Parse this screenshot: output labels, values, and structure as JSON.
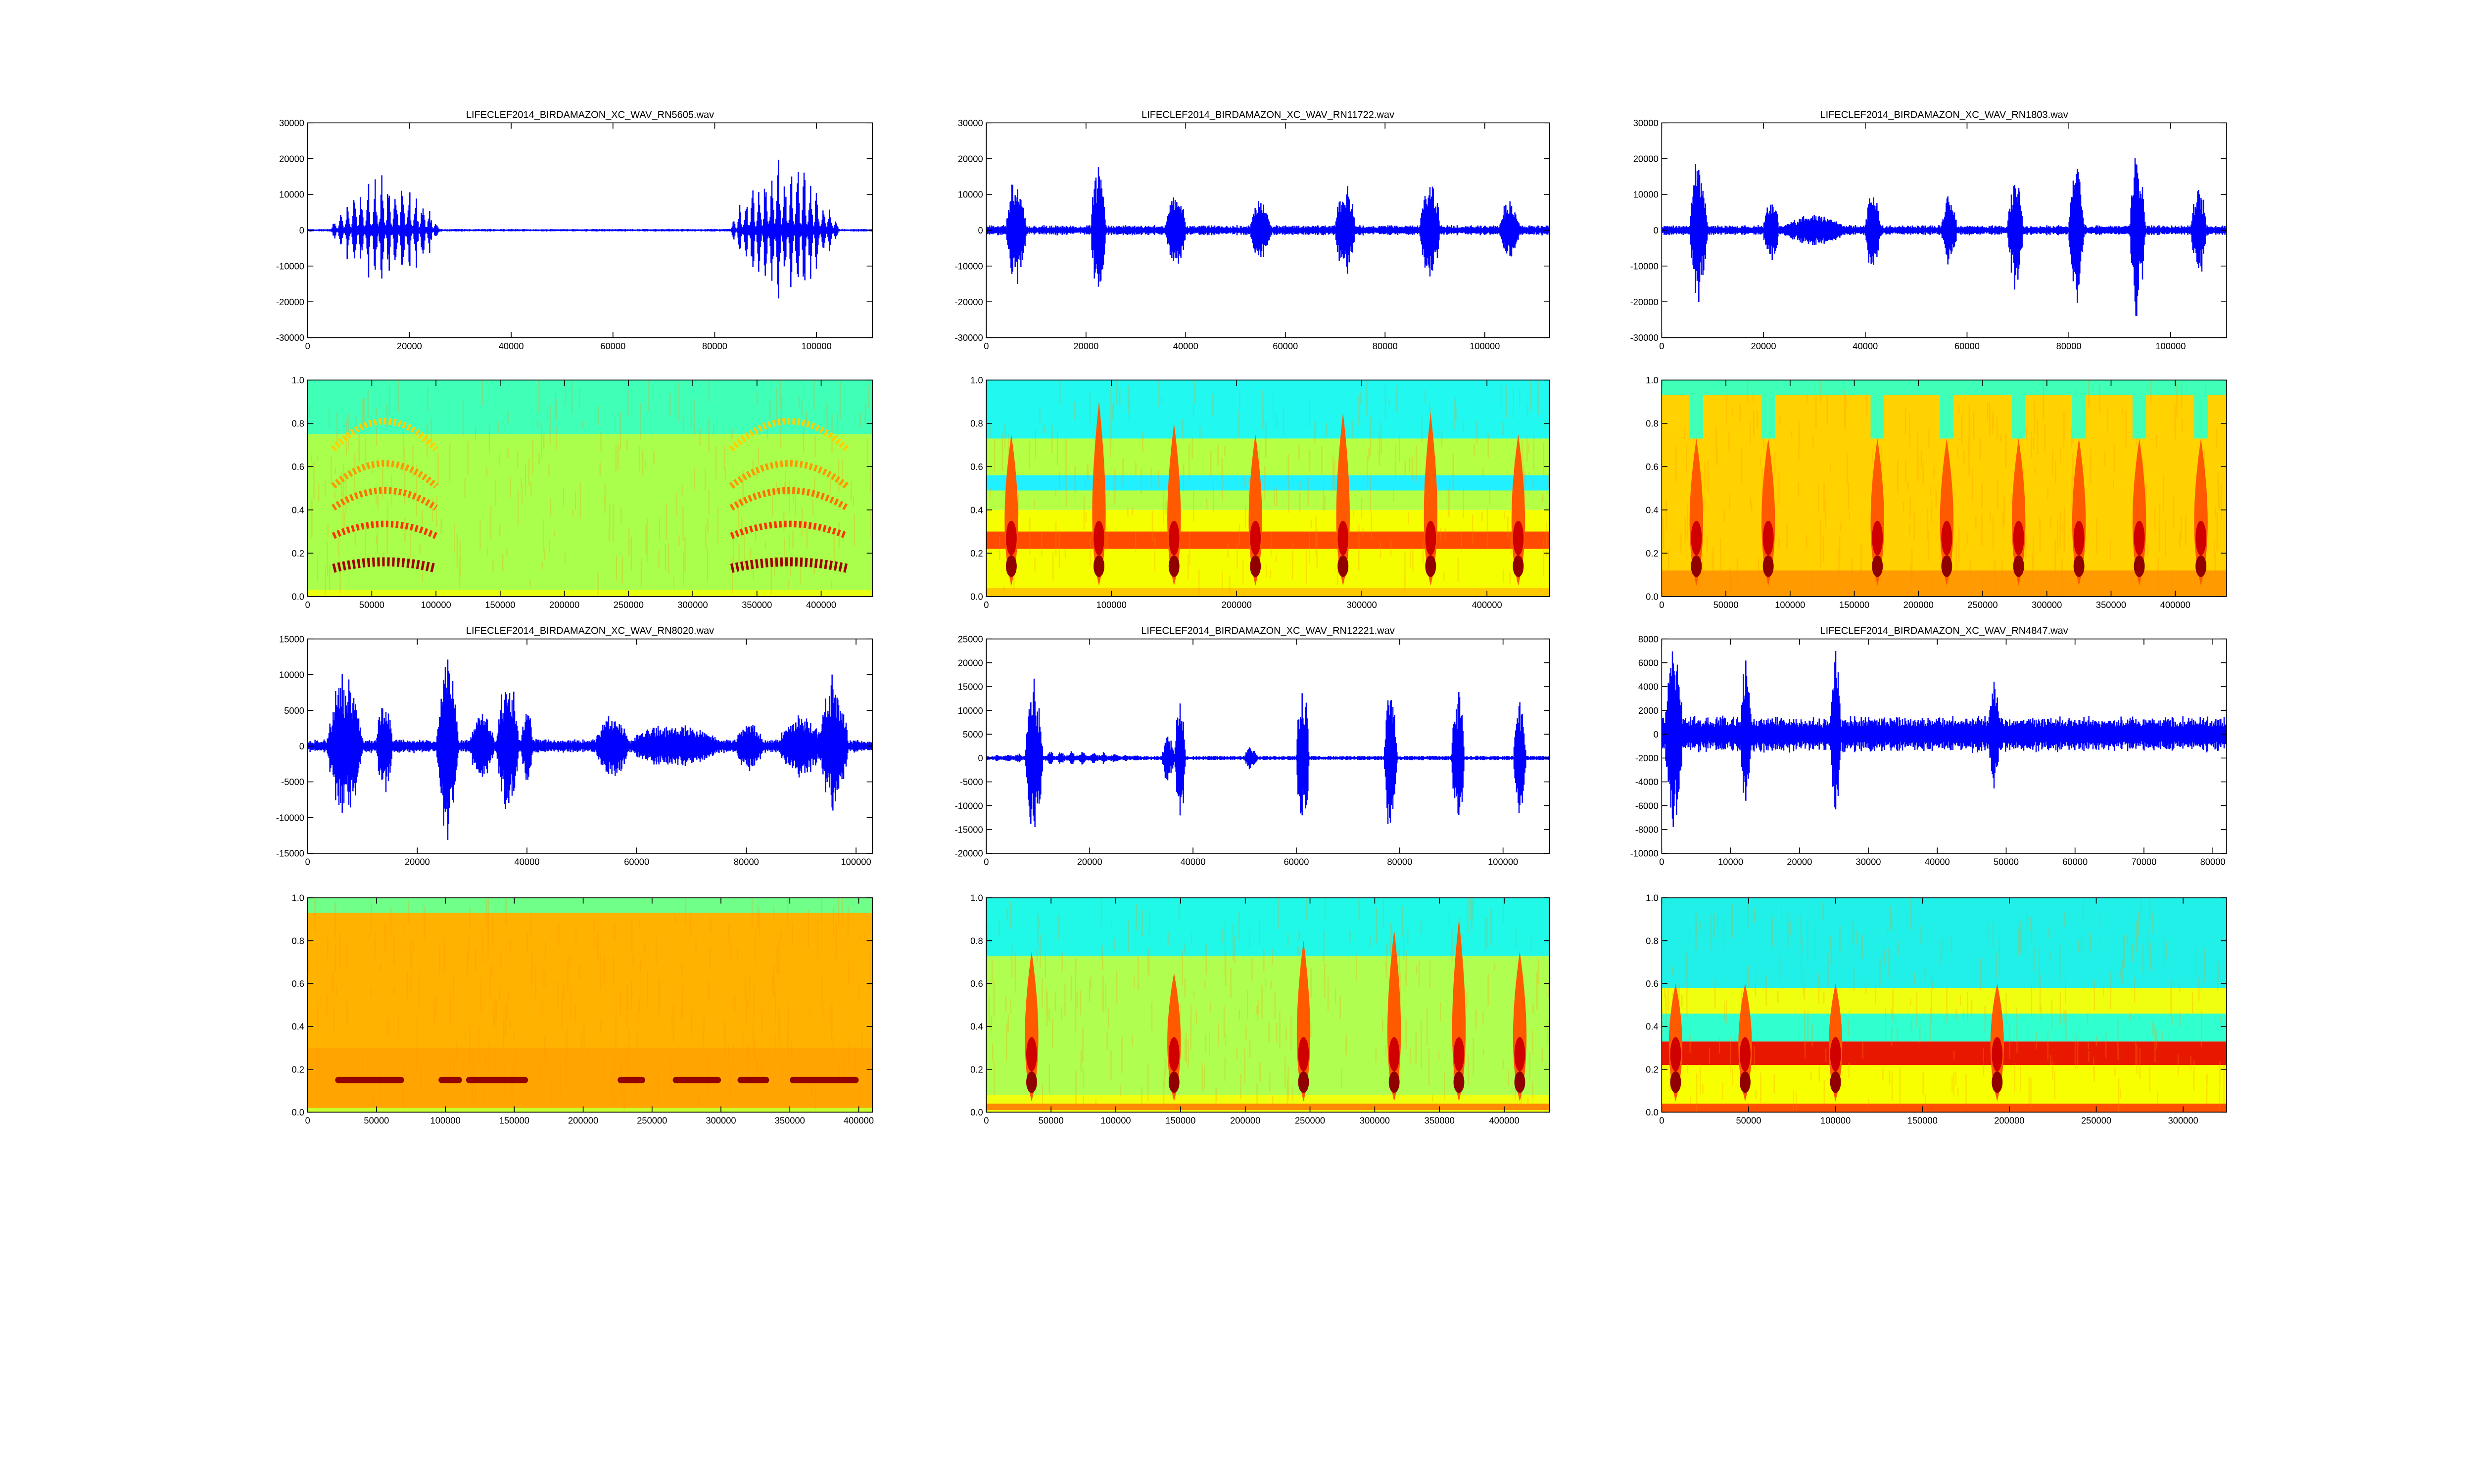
{
  "chart_data": [
    {
      "type": "line",
      "title": "LIFECLEF2014_BIRDAMAZON_XC_WAV_RN5605.wav",
      "xlim": [
        0,
        111000
      ],
      "ylim": [
        -30000,
        30000
      ],
      "xticks": [
        "0",
        "20000",
        "40000",
        "60000",
        "80000",
        "100000"
      ],
      "yticks": [
        "-30000",
        "-20000",
        "-10000",
        "0",
        "10000",
        "20000",
        "30000"
      ],
      "noise": 400,
      "color": "#0000ff",
      "bursts": [
        {
          "start": 4500,
          "end": 26000,
          "amp": 17000,
          "pulses": 16
        },
        {
          "start": 83000,
          "end": 104500,
          "amp": 22000,
          "pulses": 17
        }
      ]
    },
    {
      "type": "line",
      "title": "LIFECLEF2014_BIRDAMAZON_XC_WAV_RN11722.wav",
      "xlim": [
        0,
        113000
      ],
      "ylim": [
        -30000,
        30000
      ],
      "xticks": [
        "0",
        "20000",
        "40000",
        "60000",
        "80000",
        "100000"
      ],
      "yticks": [
        "-30000",
        "-20000",
        "-10000",
        "0",
        "10000",
        "20000",
        "30000"
      ],
      "noise": 1500,
      "color": "#0000ff",
      "bursts": [
        {
          "start": 4000,
          "end": 8000,
          "amp": 15000,
          "pulses": 0
        },
        {
          "start": 21000,
          "end": 24000,
          "amp": 20000,
          "pulses": 0
        },
        {
          "start": 36000,
          "end": 40000,
          "amp": 12000,
          "pulses": 0
        },
        {
          "start": 53000,
          "end": 57000,
          "amp": 9000,
          "pulses": 0
        },
        {
          "start": 70000,
          "end": 74000,
          "amp": 13000,
          "pulses": 0
        },
        {
          "start": 87000,
          "end": 91000,
          "amp": 15000,
          "pulses": 0
        },
        {
          "start": 103000,
          "end": 107000,
          "amp": 8000,
          "pulses": 0
        }
      ]
    },
    {
      "type": "line",
      "title": "LIFECLEF2014_BIRDAMAZON_XC_WAV_RN1803.wav",
      "xlim": [
        0,
        111000
      ],
      "ylim": [
        -30000,
        30000
      ],
      "xticks": [
        "0",
        "20000",
        "40000",
        "60000",
        "80000",
        "100000"
      ],
      "yticks": [
        "-30000",
        "-20000",
        "-10000",
        "0",
        "10000",
        "20000",
        "30000"
      ],
      "noise": 1500,
      "color": "#0000ff",
      "bursts": [
        {
          "start": 5500,
          "end": 9000,
          "amp": 21000,
          "pulses": 0
        },
        {
          "start": 20000,
          "end": 23000,
          "amp": 10000,
          "pulses": 0
        },
        {
          "start": 24000,
          "end": 36000,
          "amp": 3500,
          "pulses": 0
        },
        {
          "start": 40000,
          "end": 43000,
          "amp": 13000,
          "pulses": 0
        },
        {
          "start": 55000,
          "end": 58000,
          "amp": 10000,
          "pulses": 0
        },
        {
          "start": 68000,
          "end": 71000,
          "amp": 17000,
          "pulses": 0
        },
        {
          "start": 80000,
          "end": 83000,
          "amp": 20000,
          "pulses": 0
        },
        {
          "start": 92000,
          "end": 95000,
          "amp": 25000,
          "pulses": 0
        },
        {
          "start": 104000,
          "end": 107000,
          "amp": 14000,
          "pulses": 0
        }
      ]
    },
    {
      "type": "heatmap",
      "xlim": [
        0,
        440000
      ],
      "ylim": [
        0,
        1
      ],
      "xticks": [
        "0",
        "50000",
        "100000",
        "150000",
        "200000",
        "250000",
        "300000",
        "350000",
        "400000"
      ],
      "yticks": [
        "0.0",
        "0.2",
        "0.4",
        "0.6",
        "0.8",
        "1.0"
      ],
      "bands": [
        {
          "f0": 0,
          "f1": 0.75,
          "color": "#aaff4d"
        },
        {
          "f0": 0.75,
          "f1": 1,
          "color": "#40ffb7"
        },
        {
          "f0": 0,
          "f1": 0.03,
          "color": "#e8ff10"
        }
      ],
      "arcs": [
        {
          "t0": 20000,
          "t1": 100000
        },
        {
          "t0": 330000,
          "t1": 420000
        }
      ],
      "harmonics": [
        {
          "f": 0.15,
          "color": "#a00000"
        },
        {
          "f": 0.3,
          "color": "#ff3000"
        },
        {
          "f": 0.43,
          "color": "#ff7000"
        },
        {
          "f": 0.53,
          "color": "#ff9800"
        },
        {
          "f": 0.7,
          "color": "#ffd000"
        }
      ],
      "calls": [],
      "notches": []
    },
    {
      "type": "heatmap",
      "xlim": [
        0,
        450000
      ],
      "ylim": [
        0,
        1
      ],
      "xticks": [
        "0",
        "100000",
        "200000",
        "300000",
        "400000"
      ],
      "yticks": [
        "0.0",
        "0.2",
        "0.4",
        "0.6",
        "0.8",
        "1.0"
      ],
      "bands": [
        {
          "f0": 0,
          "f1": 0.4,
          "color": "#f5ff00"
        },
        {
          "f0": 0.4,
          "f1": 0.73,
          "color": "#b5ff45"
        },
        {
          "f0": 0.49,
          "f1": 0.56,
          "color": "#20f0ff"
        },
        {
          "f0": 0.73,
          "f1": 1,
          "color": "#20f8f0"
        },
        {
          "f0": 0.22,
          "f1": 0.3,
          "color": "#ff4a00"
        },
        {
          "f0": 0,
          "f1": 0.04,
          "color": "#ffc800"
        }
      ],
      "arcs": [],
      "harmonics": [],
      "calls": [
        {
          "t": 20000,
          "fmax": 0.75
        },
        {
          "t": 90000,
          "fmax": 0.9
        },
        {
          "t": 150000,
          "fmax": 0.8
        },
        {
          "t": 215000,
          "fmax": 0.75
        },
        {
          "t": 285000,
          "fmax": 0.85
        },
        {
          "t": 355000,
          "fmax": 0.85
        },
        {
          "t": 425000,
          "fmax": 0.75
        }
      ],
      "notches": []
    },
    {
      "type": "heatmap",
      "xlim": [
        0,
        440000
      ],
      "ylim": [
        0,
        1
      ],
      "xticks": [
        "0",
        "50000",
        "100000",
        "150000",
        "200000",
        "250000",
        "300000",
        "350000",
        "400000"
      ],
      "yticks": [
        "0.0",
        "0.2",
        "0.4",
        "0.6",
        "0.8",
        "1.0"
      ],
      "bands": [
        {
          "f0": 0,
          "f1": 0.93,
          "color": "#ffd200"
        },
        {
          "f0": 0,
          "f1": 0.12,
          "color": "#ff9a00"
        },
        {
          "f0": 0.93,
          "f1": 1,
          "color": "#40ffb7"
        }
      ],
      "arcs": [],
      "harmonics": [],
      "calls": [
        {
          "t": 27000,
          "fmax": 0.73
        },
        {
          "t": 83000,
          "fmax": 0.73
        },
        {
          "t": 168000,
          "fmax": 0.73
        },
        {
          "t": 222000,
          "fmax": 0.73
        },
        {
          "t": 278000,
          "fmax": 0.73
        },
        {
          "t": 325000,
          "fmax": 0.73
        },
        {
          "t": 372000,
          "fmax": 0.73
        },
        {
          "t": 420000,
          "fmax": 0.73
        }
      ],
      "notches": [
        27000,
        83000,
        168000,
        222000,
        278000,
        325000,
        372000,
        420000
      ]
    },
    {
      "type": "line",
      "title": "LIFECLEF2014_BIRDAMAZON_XC_WAV_RN8020.wav",
      "xlim": [
        0,
        103000
      ],
      "ylim": [
        -15000,
        15000
      ],
      "xticks": [
        "0",
        "20000",
        "40000",
        "60000",
        "80000",
        "100000"
      ],
      "yticks": [
        "-15000",
        "-10000",
        "-5000",
        "0",
        "5000",
        "10000",
        "15000"
      ],
      "noise": 1000,
      "color": "#0000ff",
      "bursts": [
        {
          "start": 3500,
          "end": 10000,
          "amp": 10000,
          "pulses": 0
        },
        {
          "start": 12500,
          "end": 15500,
          "amp": 6000,
          "pulses": 0
        },
        {
          "start": 23500,
          "end": 27500,
          "amp": 14000,
          "pulses": 0
        },
        {
          "start": 29500,
          "end": 34000,
          "amp": 4500,
          "pulses": 0
        },
        {
          "start": 34500,
          "end": 38500,
          "amp": 10000,
          "pulses": 0
        },
        {
          "start": 39000,
          "end": 41000,
          "amp": 5500,
          "pulses": 0
        },
        {
          "start": 52500,
          "end": 58500,
          "amp": 4500,
          "pulses": 0
        },
        {
          "start": 59000,
          "end": 75000,
          "amp": 2500,
          "pulses": 0
        },
        {
          "start": 78000,
          "end": 83000,
          "amp": 3000,
          "pulses": 0
        },
        {
          "start": 86000,
          "end": 94000,
          "amp": 4000,
          "pulses": 0
        },
        {
          "start": 93500,
          "end": 98500,
          "amp": 10000,
          "pulses": 0
        }
      ]
    },
    {
      "type": "line",
      "title": "LIFECLEF2014_BIRDAMAZON_XC_WAV_RN12221.wav",
      "xlim": [
        0,
        109000
      ],
      "ylim": [
        -20000,
        25000
      ],
      "xticks": [
        "0",
        "20000",
        "40000",
        "60000",
        "80000",
        "100000"
      ],
      "yticks": [
        "-20000",
        "-15000",
        "-10000",
        "-5000",
        "0",
        "5000",
        "10000",
        "15000",
        "20000",
        "25000"
      ],
      "noise": 500,
      "color": "#0000ff",
      "bursts": [
        {
          "start": 1000,
          "end": 30000,
          "amp": 1200,
          "pulses": 14
        },
        {
          "start": 7500,
          "end": 11000,
          "amp": 17000,
          "pulses": 0
        },
        {
          "start": 34000,
          "end": 36500,
          "amp": 5000,
          "pulses": 0
        },
        {
          "start": 36500,
          "end": 38500,
          "amp": 17000,
          "pulses": 0
        },
        {
          "start": 50000,
          "end": 52500,
          "amp": 2500,
          "pulses": 0
        },
        {
          "start": 60000,
          "end": 62500,
          "amp": 17000,
          "pulses": 0
        },
        {
          "start": 77000,
          "end": 79500,
          "amp": 18500,
          "pulses": 0
        },
        {
          "start": 90000,
          "end": 92500,
          "amp": 17000,
          "pulses": 0
        },
        {
          "start": 102000,
          "end": 104500,
          "amp": 14000,
          "pulses": 0
        }
      ]
    },
    {
      "type": "line",
      "title": "LIFECLEF2014_BIRDAMAZON_XC_WAV_RN4847.wav",
      "xlim": [
        0,
        82000
      ],
      "ylim": [
        -10000,
        8000
      ],
      "xticks": [
        "0",
        "10000",
        "20000",
        "30000",
        "40000",
        "50000",
        "60000",
        "70000",
        "80000"
      ],
      "yticks": [
        "-10000",
        "-8000",
        "-6000",
        "-4000",
        "-2000",
        "0",
        "2000",
        "4000",
        "6000",
        "8000"
      ],
      "noise": 1600,
      "color": "#0000ff",
      "bursts": [
        {
          "start": 500,
          "end": 3000,
          "amp": 7000,
          "pulses": 0
        },
        {
          "start": 11500,
          "end": 13000,
          "amp": 6000,
          "pulses": 0
        },
        {
          "start": 24500,
          "end": 26000,
          "amp": 7000,
          "pulses": 0
        },
        {
          "start": 47500,
          "end": 49000,
          "amp": 4500,
          "pulses": 0
        }
      ]
    },
    {
      "type": "heatmap",
      "xlim": [
        0,
        410000
      ],
      "ylim": [
        0,
        1
      ],
      "xticks": [
        "0",
        "50000",
        "100000",
        "150000",
        "200000",
        "250000",
        "300000",
        "350000",
        "400000"
      ],
      "yticks": [
        "0.0",
        "0.2",
        "0.4",
        "0.6",
        "0.8",
        "1.0"
      ],
      "bands": [
        {
          "f0": 0,
          "f1": 0.93,
          "color": "#ffa400"
        },
        {
          "f0": 0.3,
          "f1": 0.93,
          "color": "#ffb200"
        },
        {
          "f0": 0.93,
          "f1": 1,
          "color": "#70ff88"
        },
        {
          "f0": 0,
          "f1": 0.02,
          "color": "#c8ff30"
        }
      ],
      "arcs": [],
      "harmonics": [],
      "calls": [],
      "notches": [],
      "segments": [
        [
          20000,
          70000
        ],
        [
          95000,
          112000
        ],
        [
          115000,
          160000
        ],
        [
          225000,
          245000
        ],
        [
          265000,
          300000
        ],
        [
          312000,
          335000
        ],
        [
          350000,
          400000
        ]
      ],
      "segment_f": 0.15
    },
    {
      "type": "heatmap",
      "xlim": [
        0,
        435000
      ],
      "ylim": [
        0,
        1
      ],
      "xticks": [
        "0",
        "50000",
        "100000",
        "150000",
        "200000",
        "250000",
        "300000",
        "350000",
        "400000"
      ],
      "yticks": [
        "0.0",
        "0.2",
        "0.4",
        "0.6",
        "0.8",
        "1.0"
      ],
      "bands": [
        {
          "f0": 0,
          "f1": 0.73,
          "color": "#b0ff50"
        },
        {
          "f0": 0.73,
          "f1": 1,
          "color": "#20f8e8"
        },
        {
          "f0": 0,
          "f1": 0.08,
          "color": "#f0ff10"
        },
        {
          "f0": 0.01,
          "f1": 0.04,
          "color": "#ff8a00"
        }
      ],
      "arcs": [],
      "harmonics": [],
      "calls": [
        {
          "t": 35000,
          "fmax": 0.75
        },
        {
          "t": 145000,
          "fmax": 0.65
        },
        {
          "t": 245000,
          "fmax": 0.8
        },
        {
          "t": 315000,
          "fmax": 0.85
        },
        {
          "t": 365000,
          "fmax": 0.9
        },
        {
          "t": 412000,
          "fmax": 0.75
        }
      ],
      "notches": []
    },
    {
      "type": "heatmap",
      "xlim": [
        0,
        325000
      ],
      "ylim": [
        0,
        1
      ],
      "xticks": [
        "0",
        "50000",
        "100000",
        "150000",
        "200000",
        "250000",
        "300000"
      ],
      "yticks": [
        "0.0",
        "0.2",
        "0.4",
        "0.6",
        "0.8",
        "1.0"
      ],
      "bands": [
        {
          "f0": 0,
          "f1": 0.22,
          "color": "#f8ff00"
        },
        {
          "f0": 0.22,
          "f1": 0.33,
          "color": "#e81800"
        },
        {
          "f0": 0.33,
          "f1": 0.46,
          "color": "#30ffd0"
        },
        {
          "f0": 0.46,
          "f1": 0.58,
          "color": "#f0ff10"
        },
        {
          "f0": 0.58,
          "f1": 1,
          "color": "#20f0e8"
        },
        {
          "f0": 0,
          "f1": 0.04,
          "color": "#ff5000"
        }
      ],
      "arcs": [],
      "harmonics": [],
      "calls": [
        {
          "t": 8000,
          "fmax": 0.6
        },
        {
          "t": 48000,
          "fmax": 0.6
        },
        {
          "t": 100000,
          "fmax": 0.6
        },
        {
          "t": 193000,
          "fmax": 0.6
        }
      ],
      "notches": []
    }
  ]
}
